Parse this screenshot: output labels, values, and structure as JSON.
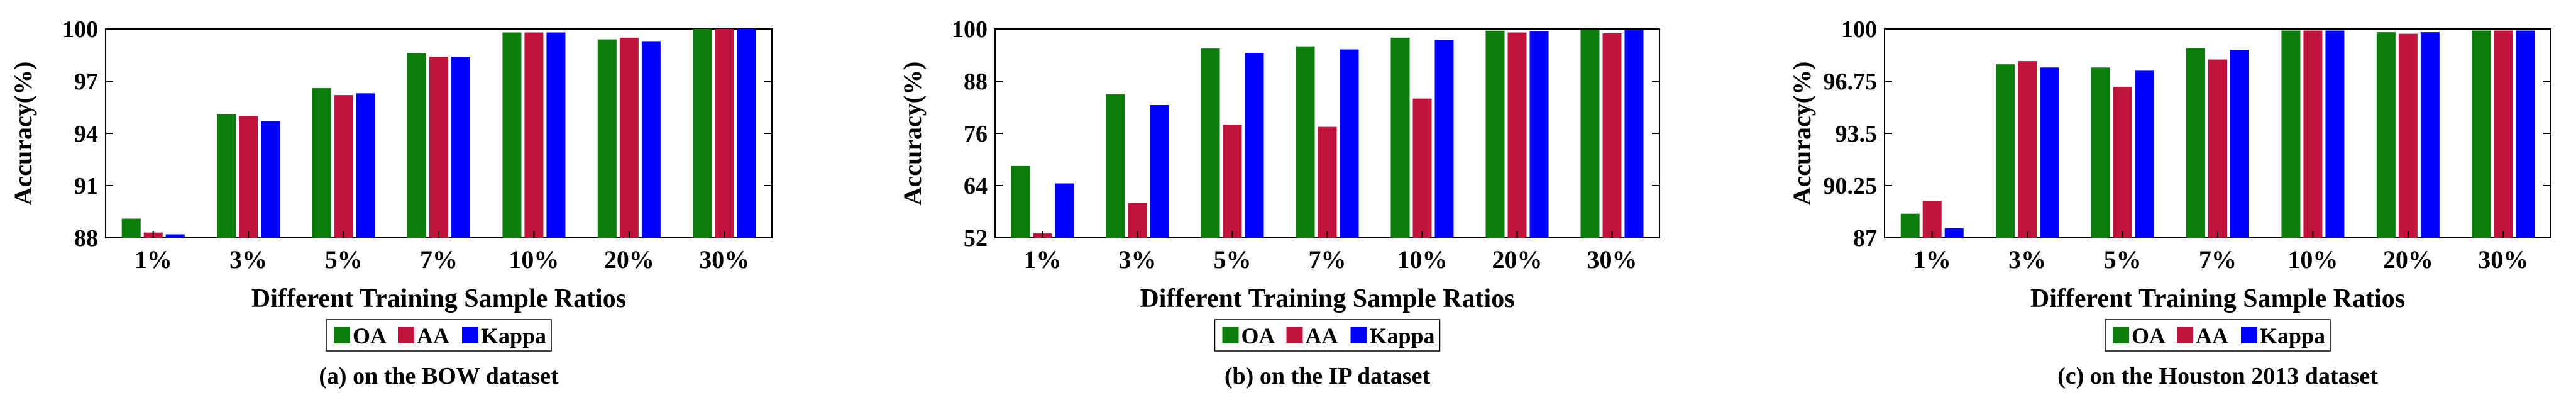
{
  "colors": {
    "OA": "#0a7d0a",
    "AA": "#c0143c",
    "Kappa": "#0000ff",
    "axis": "#000000",
    "grid_bg": "#ffffff"
  },
  "chart_data": [
    {
      "type": "bar",
      "panel": "a",
      "caption": "(a) on the BOW dataset",
      "xlabel": "Different Training Sample Ratios",
      "ylabel": "Accuracy(%)",
      "categories": [
        "1%",
        "3%",
        "5%",
        "7%",
        "10%",
        "20%",
        "30%"
      ],
      "ylim": [
        88,
        100
      ],
      "yticks": [
        "88",
        "91",
        "94",
        "97",
        "100"
      ],
      "ytick_values": [
        88,
        91,
        94,
        97,
        100
      ],
      "legend_position": "bottom-center",
      "series": [
        {
          "name": "OA",
          "values": [
            89.1,
            95.1,
            96.6,
            98.6,
            99.8,
            99.4,
            100
          ]
        },
        {
          "name": "AA",
          "values": [
            88.3,
            95.0,
            96.2,
            98.4,
            99.8,
            99.5,
            100
          ]
        },
        {
          "name": "Kappa",
          "values": [
            88.2,
            94.7,
            96.3,
            98.4,
            99.8,
            99.3,
            100
          ]
        }
      ]
    },
    {
      "type": "bar",
      "panel": "b",
      "caption": "(b) on the IP dataset",
      "xlabel": "Different Training Sample Ratios",
      "ylabel": "Accuracy(%)",
      "categories": [
        "1%",
        "3%",
        "5%",
        "7%",
        "10%",
        "20%",
        "30%"
      ],
      "ylim": [
        52,
        100
      ],
      "yticks": [
        "52",
        "64",
        "76",
        "88",
        "100"
      ],
      "ytick_values": [
        52,
        64,
        76,
        88,
        100
      ],
      "legend_position": "bottom-center",
      "series": [
        {
          "name": "OA",
          "values": [
            68.5,
            85.0,
            95.5,
            96.0,
            98.0,
            99.6,
            99.8
          ]
        },
        {
          "name": "AA",
          "values": [
            53.0,
            60.0,
            78.0,
            77.5,
            84.0,
            99.2,
            99.0
          ]
        },
        {
          "name": "Kappa",
          "values": [
            64.5,
            82.5,
            94.5,
            95.3,
            97.5,
            99.5,
            99.7
          ]
        }
      ]
    },
    {
      "type": "bar",
      "panel": "c",
      "caption": "(c) on the Houston 2013 dataset",
      "xlabel": "Different Training Sample Ratios",
      "ylabel": "Accuracy(%)",
      "categories": [
        "1%",
        "3%",
        "5%",
        "7%",
        "10%",
        "20%",
        "30%"
      ],
      "ylim": [
        87,
        100
      ],
      "yticks": [
        "87",
        "90.25",
        "93.5",
        "96.75",
        "100"
      ],
      "ytick_values": [
        87,
        90.25,
        93.5,
        96.75,
        100
      ],
      "legend_position": "bottom-center",
      "series": [
        {
          "name": "OA",
          "values": [
            88.5,
            97.8,
            97.6,
            98.8,
            99.9,
            99.8,
            99.9
          ]
        },
        {
          "name": "AA",
          "values": [
            89.3,
            98.0,
            96.4,
            98.1,
            99.9,
            99.7,
            99.9
          ]
        },
        {
          "name": "Kappa",
          "values": [
            87.6,
            97.6,
            97.4,
            98.7,
            99.9,
            99.8,
            99.9
          ]
        }
      ]
    }
  ]
}
